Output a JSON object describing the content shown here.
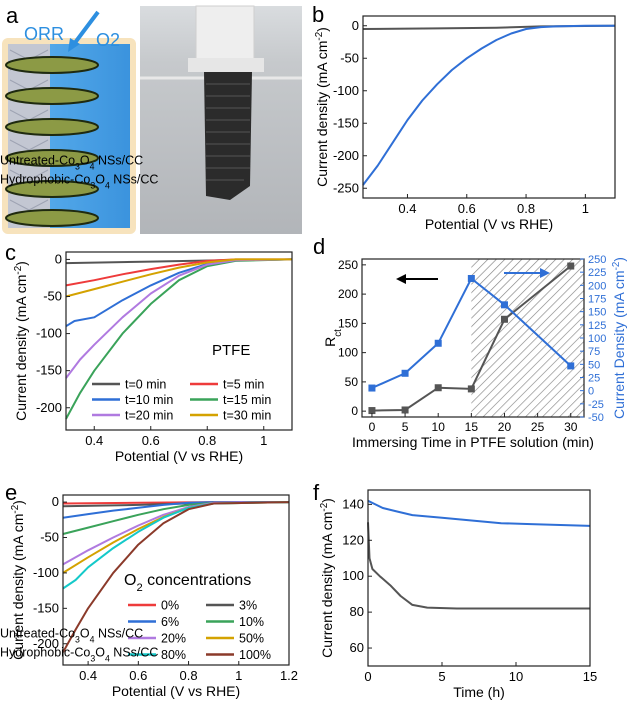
{
  "panels": {
    "a": {
      "letter": "a",
      "orr_label": "ORR",
      "o2_label": "O2",
      "colors": {
        "water": "#4aa3e8",
        "leaf": "#7a8a3c",
        "fiber": "#b8bcc8",
        "border": "#f3dcb2"
      }
    },
    "b": {
      "letter": "b"
    },
    "c": {
      "letter": "c",
      "annotation": "PTFE"
    },
    "d": {
      "letter": "d"
    },
    "e": {
      "letter": "e",
      "annotation": "O2 concentrations"
    },
    "f": {
      "letter": "f"
    }
  },
  "chart_data": [
    {
      "id": "b",
      "type": "line",
      "xlabel": "Potential (V vs RHE)",
      "ylabel": "Current density (mA cm⁻²)",
      "xlim": [
        0.25,
        1.1
      ],
      "ylim": [
        -265,
        15
      ],
      "xticks": [
        0.4,
        0.6,
        0.8,
        1.0
      ],
      "yticks": [
        0,
        -50,
        -100,
        -150,
        -200,
        -250
      ],
      "legend": "bottom-right",
      "series": [
        {
          "name": "Untreated-Co3O4 NSs/CC",
          "color": "#555555",
          "x": [
            0.25,
            0.5,
            0.7,
            0.85,
            1.1
          ],
          "y": [
            -5,
            -4,
            -3,
            -1,
            0
          ]
        },
        {
          "name": "Hydrophobic-Co3O4 NSs/CC",
          "color": "#2f6fd6",
          "x": [
            0.25,
            0.3,
            0.35,
            0.4,
            0.45,
            0.5,
            0.55,
            0.6,
            0.65,
            0.7,
            0.75,
            0.8,
            0.85,
            0.9,
            1.0,
            1.1
          ],
          "y": [
            -245,
            -215,
            -180,
            -145,
            -115,
            -90,
            -68,
            -50,
            -35,
            -22,
            -12,
            -5,
            -2,
            -1,
            0,
            0
          ]
        }
      ]
    },
    {
      "id": "c",
      "type": "line",
      "xlabel": "Potential (V vs RHE)",
      "ylabel": "Current density (mA cm⁻²)",
      "xlim": [
        0.3,
        1.1
      ],
      "ylim": [
        -230,
        10
      ],
      "xticks": [
        0.4,
        0.6,
        0.8,
        1.0
      ],
      "yticks": [
        0,
        -50,
        -100,
        -150,
        -200
      ],
      "legend": "bottom-right",
      "series": [
        {
          "name": "t=0 min",
          "color": "#555555",
          "x": [
            0.3,
            0.6,
            0.85,
            1.1
          ],
          "y": [
            -5,
            -3,
            -1,
            0
          ]
        },
        {
          "name": "t=5 min",
          "color": "#ee3b3b",
          "x": [
            0.3,
            0.4,
            0.5,
            0.6,
            0.7,
            0.8,
            0.9,
            1.1
          ],
          "y": [
            -35,
            -28,
            -20,
            -13,
            -7,
            -2,
            0,
            0
          ]
        },
        {
          "name": "t=10 min",
          "color": "#2f6fd6",
          "x": [
            0.3,
            0.33,
            0.4,
            0.5,
            0.6,
            0.7,
            0.8,
            0.9,
            1.1
          ],
          "y": [
            -90,
            -83,
            -78,
            -55,
            -35,
            -18,
            -6,
            -1,
            0
          ]
        },
        {
          "name": "t=15 min",
          "color": "#3aa35a",
          "x": [
            0.3,
            0.35,
            0.4,
            0.5,
            0.6,
            0.7,
            0.8,
            0.9,
            1.1
          ],
          "y": [
            -215,
            -180,
            -150,
            -100,
            -60,
            -28,
            -9,
            -2,
            0
          ]
        },
        {
          "name": "t=20 min",
          "color": "#b07ae0",
          "x": [
            0.3,
            0.35,
            0.4,
            0.5,
            0.6,
            0.7,
            0.8,
            0.9,
            1.1
          ],
          "y": [
            -160,
            -135,
            -115,
            -78,
            -46,
            -22,
            -7,
            -1,
            0
          ]
        },
        {
          "name": "t=30 min",
          "color": "#d4a200",
          "x": [
            0.3,
            0.4,
            0.5,
            0.6,
            0.7,
            0.8,
            0.9,
            1.1
          ],
          "y": [
            -50,
            -40,
            -30,
            -20,
            -11,
            -4,
            0,
            0
          ]
        }
      ]
    },
    {
      "id": "d",
      "type": "line",
      "xlabel": "Immersing Time in PTFE solution (min)",
      "ylabel_left": "Rct",
      "ylabel_right": "Current Density (mA cm⁻²)",
      "xlim": [
        -1.5,
        32
      ],
      "ylim_left": [
        -10,
        260
      ],
      "ylim_right": [
        -50,
        250
      ],
      "xticks": [
        0,
        5,
        10,
        15,
        20,
        25,
        30
      ],
      "yticks_left": [
        0,
        50,
        100,
        150,
        200,
        250
      ],
      "yticks_right": [
        -50,
        -25,
        0,
        25,
        50,
        75,
        100,
        125,
        150,
        175,
        200,
        225,
        250
      ],
      "shaded_region_x": [
        15,
        32
      ],
      "series": [
        {
          "name": "Rct",
          "axis": "left",
          "color": "#555555",
          "marker": "square",
          "x": [
            0,
            5,
            10,
            15,
            20,
            30
          ],
          "y": [
            1,
            2,
            40,
            38,
            157,
            248
          ]
        },
        {
          "name": "Current Density",
          "axis": "right",
          "color": "#2f6fd6",
          "marker": "square",
          "x": [
            0,
            5,
            10,
            15,
            20,
            30
          ],
          "y": [
            5,
            33,
            90,
            213,
            163,
            47
          ]
        }
      ]
    },
    {
      "id": "e",
      "type": "line",
      "xlabel": "Potential (V vs RHE)",
      "ylabel": "Current density (mA cm⁻²)",
      "xlim": [
        0.3,
        1.2
      ],
      "ylim": [
        -230,
        10
      ],
      "xticks": [
        0.4,
        0.6,
        0.8,
        1.0,
        1.2
      ],
      "yticks": [
        0,
        -50,
        -100,
        -150,
        -200
      ],
      "legend": "bottom-right",
      "series": [
        {
          "name": "0%",
          "color": "#ee3b3b",
          "x": [
            0.3,
            0.6,
            0.9,
            1.2
          ],
          "y": [
            -2,
            -1,
            0,
            0
          ]
        },
        {
          "name": "3%",
          "color": "#555555",
          "x": [
            0.3,
            0.6,
            0.9,
            1.2
          ],
          "y": [
            -6,
            -4,
            -1,
            0
          ]
        },
        {
          "name": "6%",
          "color": "#2f6fd6",
          "x": [
            0.3,
            0.4,
            0.5,
            0.6,
            0.7,
            0.8,
            0.9,
            1.2
          ],
          "y": [
            -22,
            -17,
            -12,
            -8,
            -4,
            -1,
            0,
            0
          ]
        },
        {
          "name": "10%",
          "color": "#3aa35a",
          "x": [
            0.3,
            0.4,
            0.5,
            0.6,
            0.7,
            0.8,
            0.9,
            1.2
          ],
          "y": [
            -45,
            -36,
            -27,
            -18,
            -10,
            -4,
            -1,
            0
          ]
        },
        {
          "name": "20%",
          "color": "#b07ae0",
          "x": [
            0.3,
            0.4,
            0.5,
            0.6,
            0.7,
            0.8,
            0.9,
            1.2
          ],
          "y": [
            -88,
            -68,
            -50,
            -33,
            -18,
            -7,
            -1,
            0
          ]
        },
        {
          "name": "50%",
          "color": "#d4a200",
          "x": [
            0.3,
            0.4,
            0.5,
            0.6,
            0.7,
            0.8,
            0.9,
            1.2
          ],
          "y": [
            -100,
            -78,
            -57,
            -38,
            -21,
            -8,
            -2,
            0
          ]
        },
        {
          "name": "80%",
          "color": "#14c9c9",
          "x": [
            0.3,
            0.35,
            0.4,
            0.5,
            0.6,
            0.7,
            0.8,
            0.9,
            1.2
          ],
          "y": [
            -122,
            -110,
            -92,
            -65,
            -42,
            -22,
            -8,
            -2,
            0
          ]
        },
        {
          "name": "100%",
          "color": "#8b3a2a",
          "x": [
            0.3,
            0.35,
            0.4,
            0.5,
            0.6,
            0.7,
            0.8,
            0.9,
            1.2
          ],
          "y": [
            -212,
            -180,
            -150,
            -100,
            -60,
            -30,
            -10,
            -2,
            0
          ]
        }
      ]
    },
    {
      "id": "f",
      "type": "line",
      "xlabel": "Time (h)",
      "ylabel": "Current density (mA cm⁻²)",
      "xlim": [
        0,
        15
      ],
      "ylim": [
        50,
        148
      ],
      "xticks": [
        0,
        5,
        10,
        15
      ],
      "yticks": [
        60,
        80,
        100,
        120,
        140
      ],
      "legend": "bottom-left",
      "series": [
        {
          "name": "Untreated-Co3O4 NSs/CC",
          "color": "#555555",
          "x": [
            0,
            0.1,
            0.3,
            0.8,
            1.5,
            2.2,
            3,
            4,
            6,
            10,
            15
          ],
          "y": [
            130,
            110,
            104,
            100,
            95,
            89,
            84,
            82.5,
            82,
            82,
            82
          ]
        },
        {
          "name": "Hydrophobic-Co3O4 NSs/CC",
          "color": "#2f6fd6",
          "x": [
            0,
            0.5,
            1,
            2,
            3,
            5,
            7,
            9,
            11,
            13,
            15
          ],
          "y": [
            142,
            140,
            138,
            136,
            134,
            132.5,
            131,
            129.5,
            129,
            128.5,
            128
          ]
        }
      ]
    }
  ]
}
